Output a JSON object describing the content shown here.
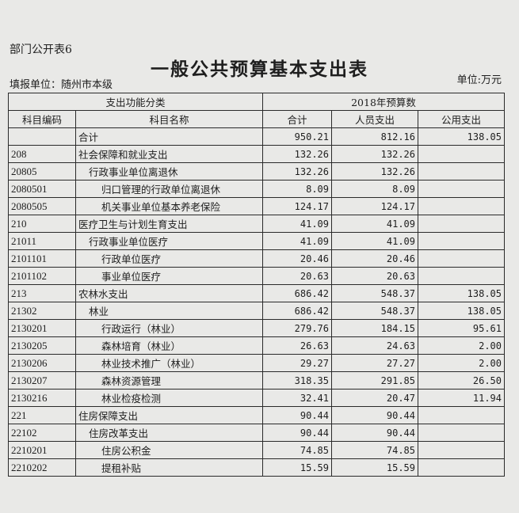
{
  "header": {
    "form_no": "部门公开表6",
    "title": "一般公共预算基本支出表",
    "filler": "填报单位：随州市本级",
    "unit": "单位:万元"
  },
  "columns": {
    "group1": "支出功能分类",
    "group2": "2018年预算数",
    "code": "科目编码",
    "name": "科目名称",
    "total": "合计",
    "personnel": "人员支出",
    "public": "公用支出"
  },
  "rows": [
    {
      "code": "",
      "name": "合计",
      "level": 0,
      "total": "950.21",
      "personnel": "812.16",
      "public": "138.05"
    },
    {
      "code": "208",
      "name": "社会保障和就业支出",
      "level": 0,
      "total": "132.26",
      "personnel": "132.26",
      "public": ""
    },
    {
      "code": "20805",
      "name": "行政事业单位离退休",
      "level": 1,
      "total": "132.26",
      "personnel": "132.26",
      "public": ""
    },
    {
      "code": "2080501",
      "name": "归口管理的行政单位离退休",
      "level": 2,
      "total": "8.09",
      "personnel": "8.09",
      "public": ""
    },
    {
      "code": "2080505",
      "name": "机关事业单位基本养老保险",
      "level": 2,
      "total": "124.17",
      "personnel": "124.17",
      "public": ""
    },
    {
      "code": "210",
      "name": "医疗卫生与计划生育支出",
      "level": 0,
      "total": "41.09",
      "personnel": "41.09",
      "public": ""
    },
    {
      "code": "21011",
      "name": "行政事业单位医疗",
      "level": 1,
      "total": "41.09",
      "personnel": "41.09",
      "public": ""
    },
    {
      "code": "2101101",
      "name": "行政单位医疗",
      "level": 2,
      "total": "20.46",
      "personnel": "20.46",
      "public": ""
    },
    {
      "code": "2101102",
      "name": "事业单位医疗",
      "level": 2,
      "total": "20.63",
      "personnel": "20.63",
      "public": ""
    },
    {
      "code": "213",
      "name": "农林水支出",
      "level": 0,
      "total": "686.42",
      "personnel": "548.37",
      "public": "138.05"
    },
    {
      "code": "21302",
      "name": "林业",
      "level": 1,
      "total": "686.42",
      "personnel": "548.37",
      "public": "138.05"
    },
    {
      "code": "2130201",
      "name": "行政运行（林业）",
      "level": 2,
      "total": "279.76",
      "personnel": "184.15",
      "public": "95.61"
    },
    {
      "code": "2130205",
      "name": "森林培育（林业）",
      "level": 2,
      "total": "26.63",
      "personnel": "24.63",
      "public": "2.00"
    },
    {
      "code": "2130206",
      "name": "林业技术推广（林业）",
      "level": 2,
      "total": "29.27",
      "personnel": "27.27",
      "public": "2.00"
    },
    {
      "code": "2130207",
      "name": "森林资源管理",
      "level": 2,
      "total": "318.35",
      "personnel": "291.85",
      "public": "26.50"
    },
    {
      "code": "2130216",
      "name": "林业检疫检测",
      "level": 2,
      "total": "32.41",
      "personnel": "20.47",
      "public": "11.94"
    },
    {
      "code": "221",
      "name": "住房保障支出",
      "level": 0,
      "total": "90.44",
      "personnel": "90.44",
      "public": ""
    },
    {
      "code": "22102",
      "name": "住房改革支出",
      "level": 1,
      "total": "90.44",
      "personnel": "90.44",
      "public": ""
    },
    {
      "code": "2210201",
      "name": "住房公积金",
      "level": 2,
      "total": "74.85",
      "personnel": "74.85",
      "public": ""
    },
    {
      "code": "2210202",
      "name": "提租补贴",
      "level": 2,
      "total": "15.59",
      "personnel": "15.59",
      "public": ""
    }
  ]
}
